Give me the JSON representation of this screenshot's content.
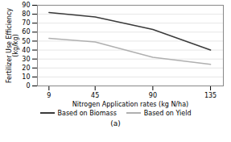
{
  "chart_data": {
    "type": "line",
    "x": [
      9,
      45,
      90,
      135
    ],
    "series": [
      {
        "name": "Based on Biomass",
        "color": "#3a3a3a",
        "values": [
          82,
          77,
          63,
          40
        ]
      },
      {
        "name": "Based on Yield",
        "color": "#b0b0b0",
        "values": [
          53,
          49,
          32,
          24
        ]
      }
    ],
    "xlabel": "Nitrogen Application rates (kg N/ha)",
    "ylabel": "Fertilizer Use Efficiency\n(kg/kg)",
    "subtitle": "(a)",
    "xlim": [
      0,
      145
    ],
    "xticks": [
      9,
      45,
      90,
      135
    ],
    "ylim": [
      0,
      90
    ],
    "yticks": [
      0,
      10,
      20,
      30,
      40,
      50,
      60,
      70,
      80,
      90
    ],
    "grid": "y",
    "legend": "bottom"
  }
}
